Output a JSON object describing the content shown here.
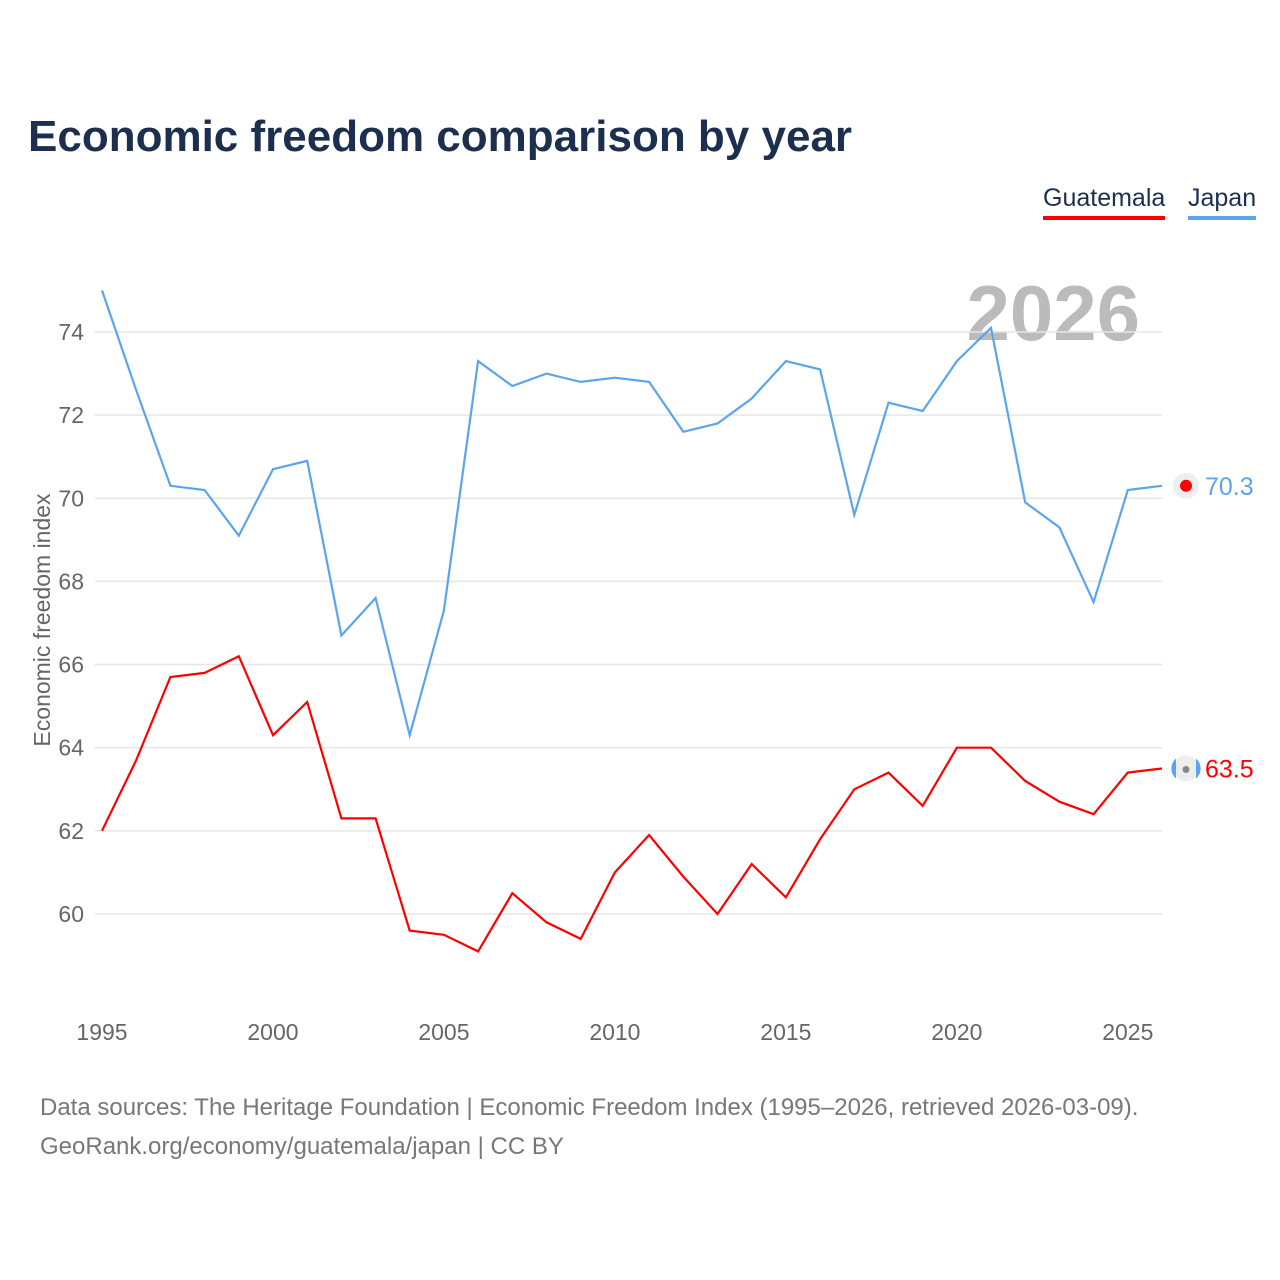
{
  "title": "Economic freedom comparison by year",
  "footer": {
    "line1": "Data sources: The Heritage Foundation | Economic Freedom Index (1995–2026, retrieved 2026-03-09).",
    "line2": "GeoRank.org/economy/guatemala/japan | CC BY"
  },
  "chart_data": {
    "type": "line",
    "title": "Economic freedom comparison by year",
    "ylabel": "Economic freedom index",
    "xlabel": "",
    "year_watermark": "2026",
    "xlim": [
      1995,
      2026
    ],
    "ylim": [
      57.5,
      75
    ],
    "x_ticks": [
      "1995",
      "2000",
      "2005",
      "2010",
      "2015",
      "2020",
      "2025"
    ],
    "y_ticks": [
      "60",
      "62",
      "64",
      "66",
      "68",
      "70",
      "72",
      "74"
    ],
    "grid": true,
    "legend_placement": "top-right",
    "x": [
      1995,
      1996,
      1997,
      1998,
      1999,
      2000,
      2001,
      2002,
      2003,
      2004,
      2005,
      2006,
      2007,
      2008,
      2009,
      2010,
      2011,
      2012,
      2013,
      2014,
      2015,
      2016,
      2017,
      2018,
      2019,
      2020,
      2021,
      2022,
      2023,
      2024,
      2025,
      2026
    ],
    "series": [
      {
        "name": "Guatemala",
        "color": "#ff0000",
        "end_label": "63.5",
        "flag": "guatemala-flag",
        "values": [
          62.0,
          63.7,
          65.7,
          65.8,
          66.2,
          64.3,
          65.1,
          62.3,
          62.3,
          59.6,
          59.5,
          59.1,
          60.5,
          59.8,
          59.4,
          61.0,
          61.9,
          60.9,
          60.0,
          61.2,
          60.4,
          61.8,
          63.0,
          63.4,
          62.6,
          64.0,
          64.0,
          63.2,
          62.7,
          62.4,
          63.4,
          63.5
        ]
      },
      {
        "name": "Japan",
        "color": "#5aa5ee",
        "end_label": "70.3",
        "flag": "japan-flag",
        "values": [
          75.0,
          72.6,
          70.3,
          70.2,
          69.1,
          70.7,
          70.9,
          66.7,
          67.6,
          64.3,
          67.3,
          73.3,
          72.7,
          73.0,
          72.8,
          72.9,
          72.8,
          71.6,
          71.8,
          72.4,
          73.3,
          73.1,
          69.6,
          72.3,
          72.1,
          73.3,
          74.1,
          69.9,
          69.3,
          67.5,
          70.2,
          70.3
        ]
      }
    ]
  }
}
